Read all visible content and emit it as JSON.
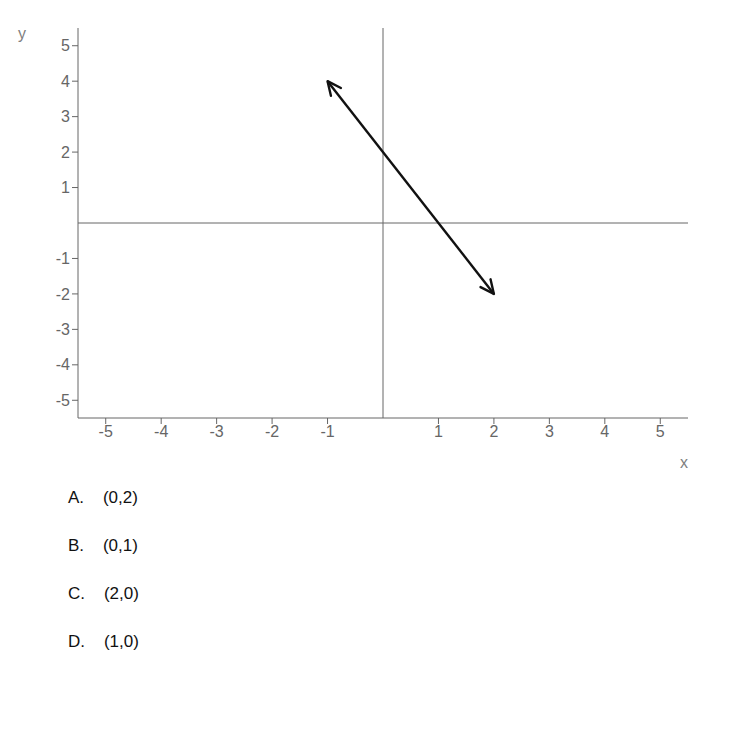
{
  "chart_data": {
    "type": "line",
    "x": [
      -1,
      2
    ],
    "values": [
      4,
      -2
    ],
    "color": "#111111",
    "marker": "arrow",
    "xlabel": "x",
    "ylabel": "y",
    "xlim": [
      -5.5,
      5.5
    ],
    "ylim": [
      -5.5,
      5.5
    ],
    "xticks": [
      -5,
      -4,
      -3,
      -2,
      -1,
      1,
      2,
      3,
      4,
      5
    ],
    "yticks": [
      -5,
      -4,
      -3,
      -2,
      -1,
      1,
      2,
      3,
      4,
      5
    ],
    "annotations": [
      "A.    (0,2)",
      "B.    (0,1)",
      "C.    (2,0)",
      "D.    (1,0)"
    ]
  }
}
